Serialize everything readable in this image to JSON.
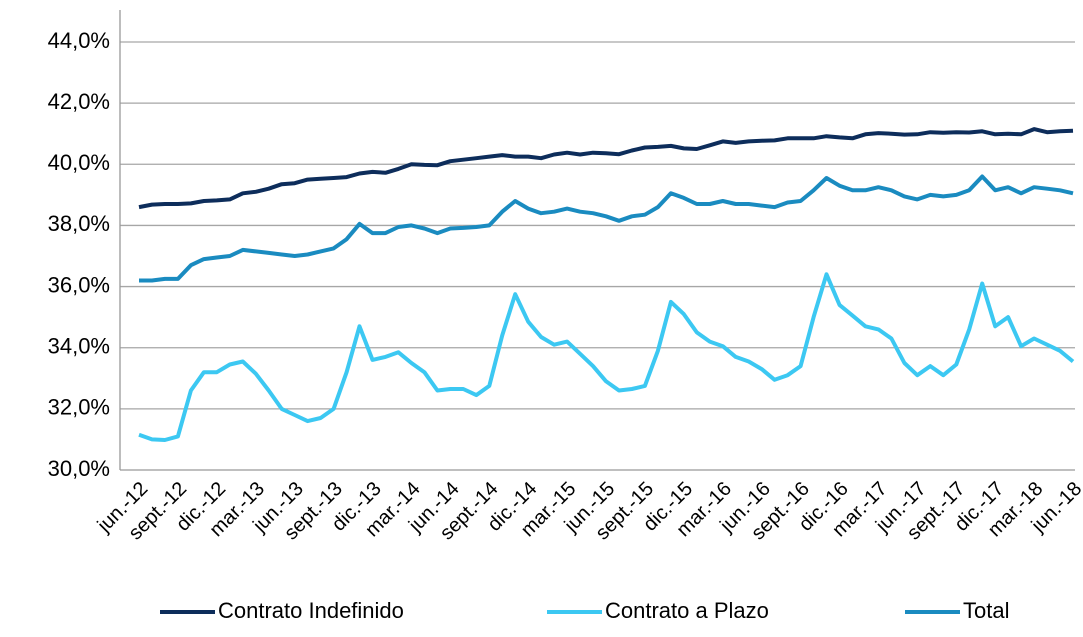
{
  "chart_data": {
    "type": "line",
    "categories": [
      "jun.-12",
      null,
      null,
      "sept.-12",
      null,
      null,
      "dic.-12",
      null,
      null,
      "mar.-13",
      null,
      null,
      "jun.-13",
      null,
      null,
      "sept.-13",
      null,
      null,
      "dic.-13",
      null,
      null,
      "mar.-14",
      null,
      null,
      "jun.-14",
      null,
      null,
      "sept.-14",
      null,
      null,
      "dic.-14",
      null,
      null,
      "mar.-15",
      null,
      null,
      "jun.-15",
      null,
      null,
      "sept.-15",
      null,
      null,
      "dic.-15",
      null,
      null,
      "mar.-16",
      null,
      null,
      "jun.-16",
      null,
      null,
      "sept.-16",
      null,
      null,
      "dic.-16",
      null,
      null,
      "mar.-17",
      null,
      null,
      "jun.-17",
      null,
      null,
      "sept.-17",
      null,
      null,
      "dic.-17",
      null,
      null,
      "mar.-18",
      null,
      null,
      "jun.-18"
    ],
    "series": [
      {
        "name": "Contrato Indefinido",
        "color": "#0d2d5b",
        "values": [
          38.6,
          38.68,
          38.7,
          38.7,
          38.72,
          38.8,
          38.82,
          38.85,
          39.05,
          39.1,
          39.2,
          39.35,
          39.38,
          39.5,
          39.53,
          39.55,
          39.58,
          39.7,
          39.75,
          39.72,
          39.85,
          40.0,
          39.98,
          39.97,
          40.1,
          40.15,
          40.2,
          40.25,
          40.3,
          40.25,
          40.25,
          40.2,
          40.32,
          40.38,
          40.32,
          40.38,
          40.36,
          40.33,
          40.45,
          40.55,
          40.57,
          40.6,
          40.52,
          40.5,
          40.62,
          40.75,
          40.7,
          40.75,
          40.77,
          40.78,
          40.85,
          40.85,
          40.85,
          40.92,
          40.88,
          40.85,
          40.98,
          41.02,
          41.0,
          40.97,
          40.98,
          41.05,
          41.03,
          41.05,
          41.04,
          41.08,
          40.98,
          41.0,
          40.98,
          41.15,
          41.05,
          41.08,
          41.1
        ]
      },
      {
        "name": "Contrato a Plazo",
        "color": "#3cc8f2",
        "values": [
          31.15,
          31.0,
          30.98,
          31.1,
          32.6,
          33.2,
          33.2,
          33.45,
          33.55,
          33.15,
          32.6,
          32.0,
          31.8,
          31.6,
          31.7,
          32.0,
          33.2,
          34.7,
          33.6,
          33.7,
          33.85,
          33.5,
          33.2,
          32.6,
          32.65,
          32.65,
          32.45,
          32.75,
          34.4,
          35.75,
          34.85,
          34.35,
          34.1,
          34.2,
          33.8,
          33.4,
          32.9,
          32.6,
          32.65,
          32.75,
          33.9,
          35.5,
          35.1,
          34.5,
          34.2,
          34.05,
          33.7,
          33.55,
          33.3,
          32.95,
          33.1,
          33.4,
          35.0,
          36.4,
          35.4,
          35.05,
          34.7,
          34.6,
          34.3,
          33.5,
          33.1,
          33.4,
          33.1,
          33.45,
          34.6,
          36.1,
          34.7,
          35.0,
          34.05,
          34.3,
          34.1,
          33.9,
          33.55
        ]
      },
      {
        "name": "Total",
        "color": "#1a8bc0",
        "values": [
          36.2,
          36.2,
          36.25,
          36.25,
          36.7,
          36.9,
          36.95,
          37.0,
          37.2,
          37.15,
          37.1,
          37.05,
          37.0,
          37.05,
          37.15,
          37.25,
          37.55,
          38.05,
          37.75,
          37.75,
          37.95,
          38.0,
          37.9,
          37.75,
          37.9,
          37.92,
          37.95,
          38.0,
          38.45,
          38.8,
          38.55,
          38.4,
          38.45,
          38.55,
          38.45,
          38.4,
          38.3,
          38.15,
          38.3,
          38.35,
          38.6,
          39.05,
          38.9,
          38.7,
          38.7,
          38.8,
          38.7,
          38.7,
          38.65,
          38.6,
          38.75,
          38.8,
          39.15,
          39.55,
          39.3,
          39.15,
          39.15,
          39.25,
          39.15,
          38.95,
          38.85,
          39.0,
          38.95,
          39.0,
          39.15,
          39.6,
          39.15,
          39.25,
          39.05,
          39.25,
          39.2,
          39.15,
          39.05
        ]
      }
    ],
    "ylim": [
      30,
      44
    ],
    "yticks": [
      {
        "value": 30,
        "label": "30,0%"
      },
      {
        "value": 32,
        "label": "32,0%"
      },
      {
        "value": 34,
        "label": "34,0%"
      },
      {
        "value": 36,
        "label": "36,0%"
      },
      {
        "value": 38,
        "label": "38,0%"
      },
      {
        "value": 40,
        "label": "40,0%"
      },
      {
        "value": 42,
        "label": "42,0%"
      },
      {
        "value": 44,
        "label": "44,0%"
      }
    ],
    "grid": true,
    "legend": "bottom"
  }
}
